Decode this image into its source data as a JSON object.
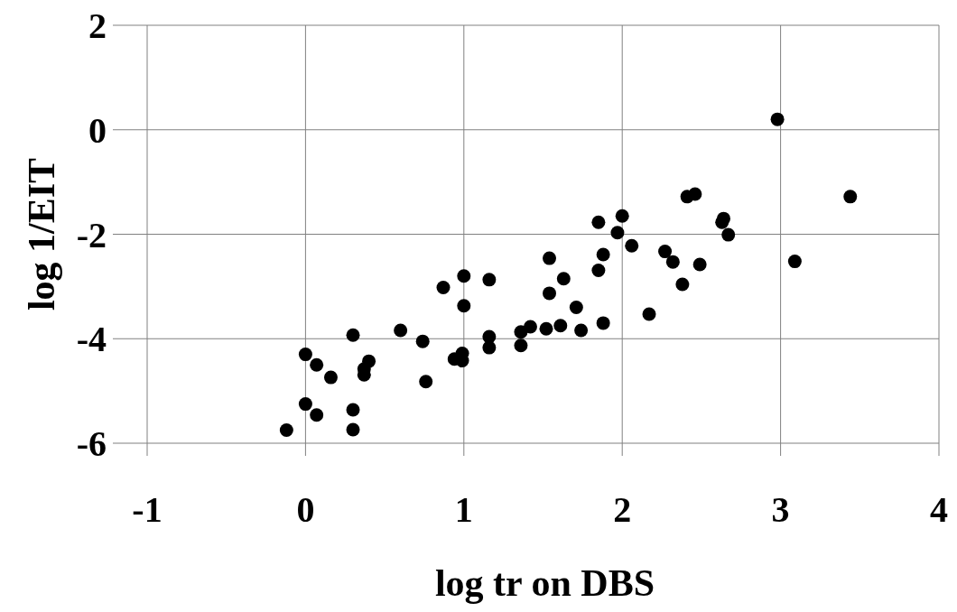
{
  "chart_data": {
    "type": "scatter",
    "xlabel": "log tr on DBS",
    "ylabel": "log 1/EIT",
    "xlim": [
      -1,
      4
    ],
    "ylim": [
      -6,
      2
    ],
    "xticks": [
      -1,
      0,
      1,
      2,
      3,
      4
    ],
    "yticks": [
      -6,
      -4,
      -2,
      0,
      2
    ],
    "grid": true,
    "marker": "circle",
    "series": [
      {
        "color": "#000000",
        "x": [
          -0.12,
          0.0,
          0.07,
          0.16,
          0.0,
          0.07,
          0.3,
          0.3,
          0.3,
          0.4,
          0.37,
          0.37,
          0.6,
          0.74,
          0.76,
          0.87,
          1.0,
          1.0,
          1.16,
          0.94,
          0.99,
          0.99,
          1.16,
          1.16,
          1.36,
          1.36,
          1.42,
          1.52,
          1.61,
          1.54,
          1.54,
          1.63,
          1.71,
          1.74,
          1.85,
          1.85,
          1.88,
          1.88,
          2.0,
          1.97,
          2.06,
          2.17,
          2.27,
          2.32,
          2.38,
          2.41,
          2.46,
          2.49,
          2.64,
          2.63,
          2.67,
          2.98,
          3.09,
          3.44
        ],
        "values": [
          -5.75,
          -4.3,
          -4.5,
          -4.74,
          -5.25,
          -5.46,
          -3.93,
          -5.36,
          -5.74,
          -4.43,
          -4.58,
          -4.69,
          -3.84,
          -4.05,
          -4.82,
          -3.02,
          -2.8,
          -3.37,
          -2.87,
          -4.39,
          -4.28,
          -4.42,
          -3.96,
          -4.17,
          -3.87,
          -4.13,
          -3.77,
          -3.81,
          -3.75,
          -2.46,
          -3.13,
          -2.85,
          -3.4,
          -3.84,
          -1.77,
          -2.69,
          -2.39,
          -3.7,
          -1.65,
          -1.97,
          -2.22,
          -3.53,
          -2.33,
          -2.53,
          -2.96,
          -1.28,
          -1.23,
          -2.58,
          -1.7,
          -1.77,
          -2.01,
          0.2,
          -2.52,
          -1.28
        ]
      }
    ]
  }
}
